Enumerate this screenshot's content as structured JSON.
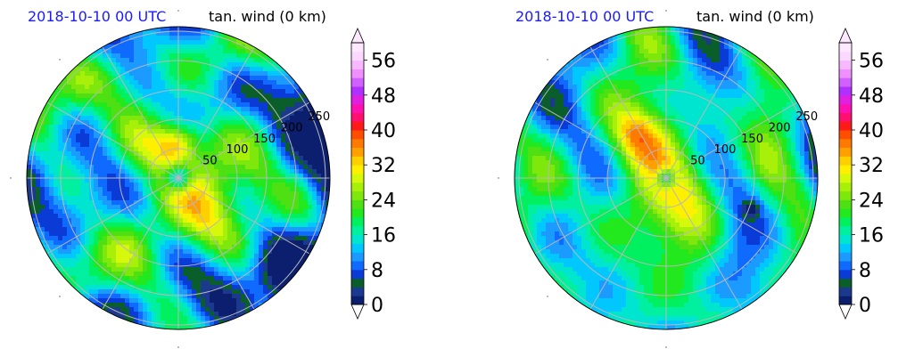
{
  "chart_data": [
    {
      "type": "polar-contour",
      "title_left": "2018-10-10 00 UTC",
      "title_right": "tan. wind (0 km)",
      "title_left_color": "#1a1aff",
      "radial_tick_labels": [
        "50",
        "100",
        "150",
        "200",
        "250"
      ],
      "colorbar": {
        "ticks": [
          "0",
          "8",
          "16",
          "24",
          "32",
          "40",
          "48",
          "56"
        ],
        "range": [
          0,
          60
        ],
        "step": 2,
        "extend": "both"
      }
    },
    {
      "type": "polar-contour",
      "title_left": "2018-10-10 00 UTC",
      "title_right": "tan. wind (0 km)",
      "title_left_color": "#1a1aff",
      "radial_tick_labels": [
        "50",
        "100",
        "150",
        "200",
        "250"
      ],
      "colorbar": {
        "ticks": [
          "0",
          "8",
          "16",
          "24",
          "32",
          "40",
          "48",
          "56"
        ],
        "range": [
          0,
          60
        ],
        "step": 2,
        "extend": "both"
      }
    }
  ],
  "colors": {
    "levels": [
      "#0b1f6e",
      "#1b3a8f",
      "#0a5e2a",
      "#0b3bd6",
      "#0f6bff",
      "#1b9bff",
      "#00c8ff",
      "#00e5d0",
      "#00f0a0",
      "#00f060",
      "#22e81e",
      "#4fe014",
      "#7ee80c",
      "#a8f00a",
      "#d6f80a",
      "#fff000",
      "#ffd000",
      "#ffa000",
      "#ff7a00",
      "#ff4e00",
      "#ff1a1a",
      "#ff1070",
      "#ff10b0",
      "#e020e0",
      "#b030ff",
      "#d060ff",
      "#f090ff",
      "#f8b8ff",
      "#fbd8ff",
      "#fde8ff"
    ],
    "grid": "#b8b8b8"
  }
}
